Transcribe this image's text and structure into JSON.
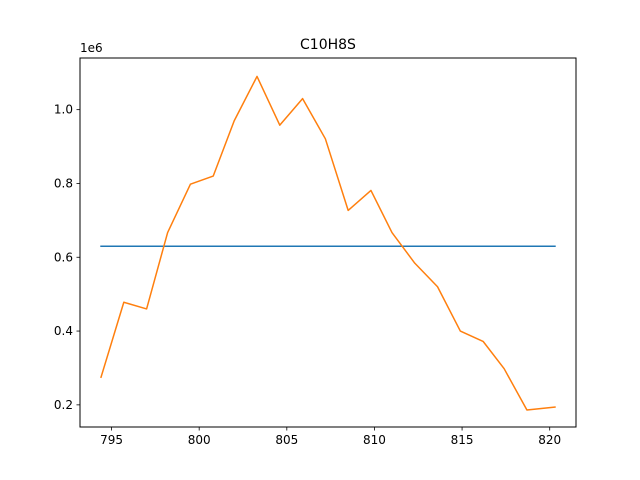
{
  "chart_data": {
    "type": "line",
    "title": "C10H8S",
    "xlabel": "",
    "ylabel": "",
    "y_offset_label": "1e6",
    "y_scale": 1000000,
    "xlim": [
      793.2,
      821.5
    ],
    "ylim": [
      140000,
      1140000
    ],
    "x_ticks": [
      795,
      800,
      805,
      810,
      815,
      820
    ],
    "y_ticks": [
      200000,
      400000,
      600000,
      800000,
      1000000
    ],
    "y_tick_labels": [
      "0.2",
      "0.4",
      "0.6",
      "0.8",
      "1.0"
    ],
    "grid": false,
    "legend": false,
    "series": [
      {
        "color": "#1f77b4",
        "x": [
          794.4,
          820.3
        ],
        "y": [
          630000,
          630000
        ]
      },
      {
        "color": "#ff7f0e",
        "x": [
          794.4,
          795.7,
          797.0,
          798.2,
          799.5,
          800.8,
          802.0,
          803.3,
          804.6,
          805.9,
          807.2,
          808.5,
          809.8,
          811.0,
          812.3,
          813.6,
          814.9,
          816.2,
          817.4,
          818.7,
          820.3
        ],
        "y": [
          275000,
          478000,
          460000,
          667000,
          798000,
          820000,
          970000,
          1090000,
          958000,
          1030000,
          921000,
          727000,
          781000,
          667000,
          584000,
          520000,
          400000,
          372000,
          298000,
          186000,
          194000
        ]
      }
    ]
  }
}
